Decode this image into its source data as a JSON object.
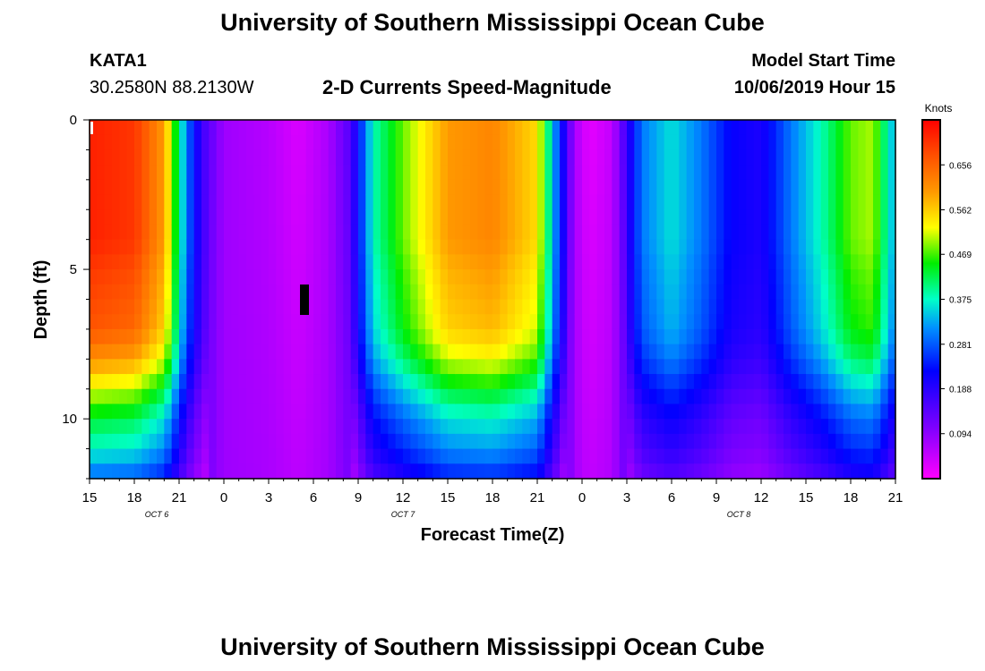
{
  "title_top": "University of Southern Mississippi Ocean Cube",
  "title_bottom": "University of Southern Mississippi Ocean Cube",
  "station": {
    "id": "KATA1",
    "coords": "30.2580N 88.2130W"
  },
  "model": {
    "label": "Model Start Time",
    "time": "10/06/2019 Hour 15"
  },
  "chart_data": {
    "type": "heatmap",
    "title": "2-D Currents Speed-Magnitude",
    "xlabel": "Forecast Time(Z)",
    "ylabel": "Depth (ft)",
    "x_ticks": [
      "15",
      "18",
      "21",
      "0",
      "3",
      "6",
      "9",
      "12",
      "15",
      "18",
      "21",
      "0",
      "3",
      "6",
      "9",
      "12",
      "15",
      "18",
      "21"
    ],
    "x_range_hours": [
      0,
      54
    ],
    "date_labels": [
      {
        "text": "OCT 6",
        "hour": 4.5
      },
      {
        "text": "OCT 7",
        "hour": 21
      },
      {
        "text": "OCT 8",
        "hour": 43.5
      }
    ],
    "y_ticks": [
      "0",
      "5",
      "10"
    ],
    "ylim": [
      0,
      12
    ],
    "colorbar": {
      "title": "Knots",
      "ticks": [
        "0.656",
        "0.562",
        "0.469",
        "0.375",
        "0.281",
        "0.188",
        "0.094"
      ],
      "range": [
        0,
        0.75
      ]
    },
    "depth_profile_ft": [
      0,
      1,
      2,
      3,
      4,
      5,
      6,
      7,
      8,
      9,
      10,
      11,
      12
    ],
    "depth_factor_peak": [
      1.0,
      1.0,
      1.0,
      1.0,
      1.0,
      0.97,
      0.95,
      0.93,
      0.85,
      0.72,
      0.6,
      0.52,
      0.4
    ],
    "surface_speed_knots": [
      {
        "hour": 0,
        "speed": 0.72
      },
      {
        "hour": 3,
        "speed": 0.7
      },
      {
        "hour": 5,
        "speed": 0.6
      },
      {
        "hour": 6.5,
        "speed": 0.3
      },
      {
        "hour": 7.5,
        "speed": 0.17
      },
      {
        "hour": 9,
        "speed": 0.08
      },
      {
        "hour": 12,
        "speed": 0.06
      },
      {
        "hour": 14,
        "speed": 0.03
      },
      {
        "hour": 16,
        "speed": 0.07
      },
      {
        "hour": 17.5,
        "speed": 0.15
      },
      {
        "hour": 19,
        "speed": 0.38
      },
      {
        "hour": 21,
        "speed": 0.48
      },
      {
        "hour": 24,
        "speed": 0.6
      },
      {
        "hour": 27,
        "speed": 0.62
      },
      {
        "hour": 30,
        "speed": 0.55
      },
      {
        "hour": 31.5,
        "speed": 0.25
      },
      {
        "hour": 32.5,
        "speed": 0.07
      },
      {
        "hour": 33.5,
        "speed": 0.02
      },
      {
        "hour": 35,
        "speed": 0.05
      },
      {
        "hour": 37,
        "speed": 0.3
      },
      {
        "hour": 39,
        "speed": 0.36
      },
      {
        "hour": 41,
        "speed": 0.3
      },
      {
        "hour": 43,
        "speed": 0.22
      },
      {
        "hour": 45,
        "speed": 0.2
      },
      {
        "hour": 47,
        "speed": 0.3
      },
      {
        "hour": 49,
        "speed": 0.38
      },
      {
        "hour": 51,
        "speed": 0.48
      },
      {
        "hour": 52.5,
        "speed": 0.5
      },
      {
        "hour": 54,
        "speed": 0.32
      }
    ]
  }
}
